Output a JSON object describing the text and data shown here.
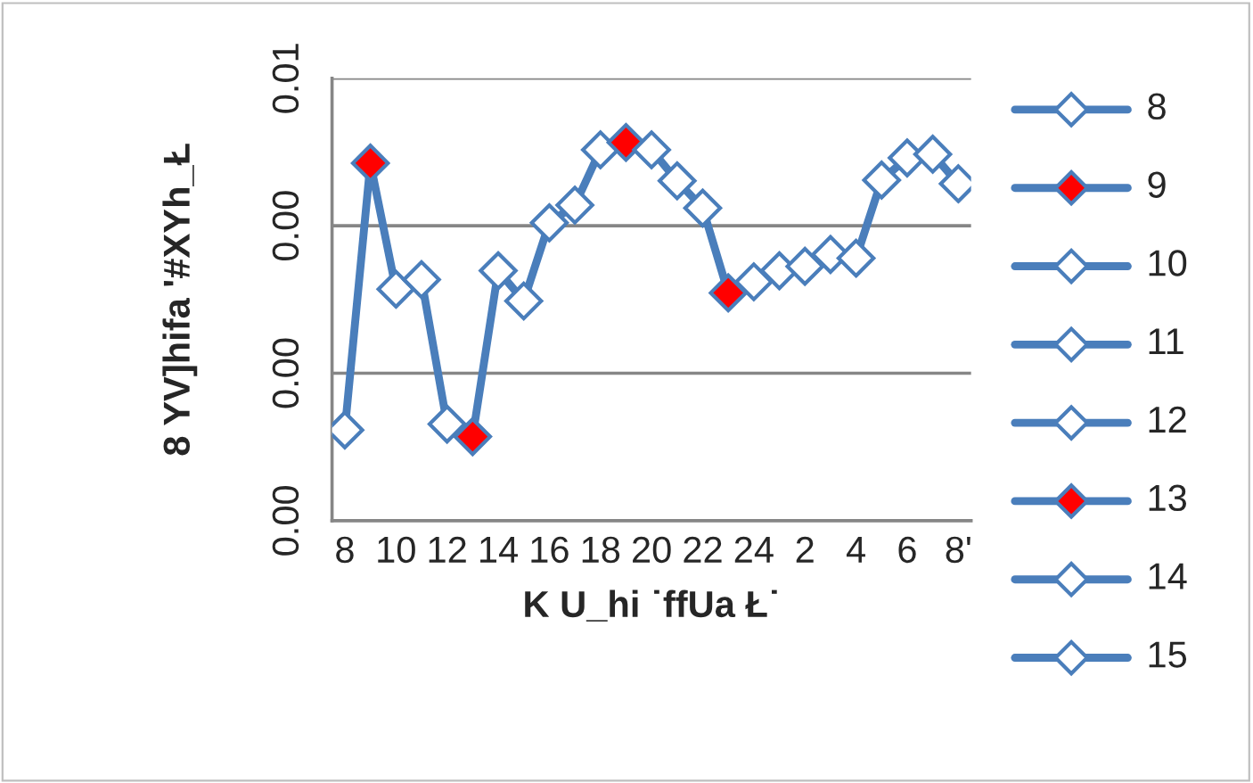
{
  "chart_data": {
    "type": "line",
    "xlabel": "K U_hi ˙ffUa Ł˙",
    "ylabel": "8 YV]hifa '#XYh_Ł",
    "annotations": [
      "8",
      "9",
      "10",
      "11",
      "12",
      "13",
      "14",
      "15"
    ],
    "categories": [
      "8",
      null,
      "10",
      null,
      "12",
      null,
      "14",
      null,
      "16",
      null,
      "18",
      null,
      "20",
      null,
      "22",
      null,
      "24",
      null,
      "2",
      null,
      "4",
      null,
      "6",
      null,
      "8'"
    ],
    "series": [
      {
        "color": "#4a7ebb",
        "colors": [
          "#ffffff",
          "#ff0000",
          "#ffffff",
          "#ffffff",
          "#ffffff",
          "#ff0000",
          "#ffffff",
          "#ffffff",
          "#ffffff",
          "#ffffff",
          "#ffffff",
          "#ff0000",
          "#ffffff",
          "#ffffff",
          "#ffffff",
          "#ff0000",
          "#ffffff",
          "#ffffff",
          "#ffffff",
          "#ffffff",
          "#ffffff",
          "#ffffff",
          "#ffffff",
          "#ffffff",
          "#ffffff"
        ],
        "values": [
          0.00123,
          0.00485,
          0.00314,
          0.00327,
          0.00131,
          0.00114,
          0.00339,
          0.00298,
          0.00404,
          0.00428,
          0.00503,
          0.00513,
          0.00503,
          0.00461,
          0.00424,
          0.00309,
          0.00324,
          0.00339,
          0.00345,
          0.00361,
          0.00356,
          0.00462,
          0.00492,
          0.00497,
          0.00457
        ]
      }
    ],
    "ylim": [
      0,
      0.006
    ],
    "yticks": [
      {
        "value": 0,
        "label": "0.00"
      },
      {
        "value": 0.002,
        "label": "0.00"
      },
      {
        "value": 0.004,
        "label": "0.00"
      },
      {
        "value": 0.006,
        "label": "0.01"
      }
    ],
    "grid": "y",
    "marker": "diamond",
    "line_style": "solid"
  }
}
